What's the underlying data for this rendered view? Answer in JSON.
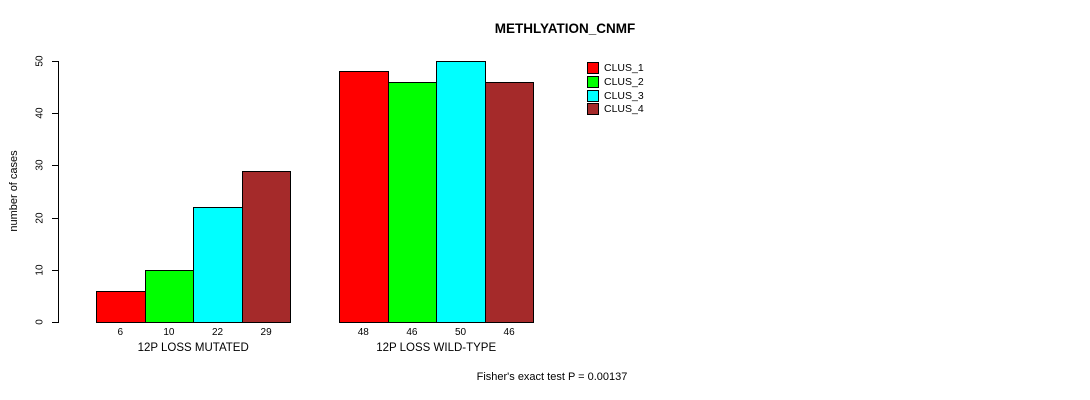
{
  "chart_data": {
    "type": "bar",
    "title": "METHLYATION_CNMF",
    "ylabel": "number of cases",
    "xlabel": "",
    "ylim": [
      0,
      50
    ],
    "yticks": [
      0,
      10,
      20,
      30,
      40,
      50
    ],
    "grid": false,
    "legend_position": "top-right",
    "groups": [
      "12P LOSS MUTATED",
      "12P LOSS WILD-TYPE"
    ],
    "series": [
      {
        "name": "CLUS_1",
        "color": "#FF0000",
        "values": [
          6,
          48
        ]
      },
      {
        "name": "CLUS_2",
        "color": "#00FF00",
        "values": [
          10,
          46
        ]
      },
      {
        "name": "CLUS_3",
        "color": "#00FFFF",
        "values": [
          22,
          50
        ]
      },
      {
        "name": "CLUS_4",
        "color": "#A52A2A",
        "values": [
          29,
          46
        ]
      }
    ],
    "bar_value_labels": [
      [
        6,
        10,
        22,
        29
      ],
      [
        48,
        46,
        50,
        46
      ]
    ],
    "annotation": "Fisher's exact test P = 0.00137"
  },
  "colors": {
    "background": "#FFFFFF",
    "axis": "#000000",
    "text": "#000000"
  }
}
